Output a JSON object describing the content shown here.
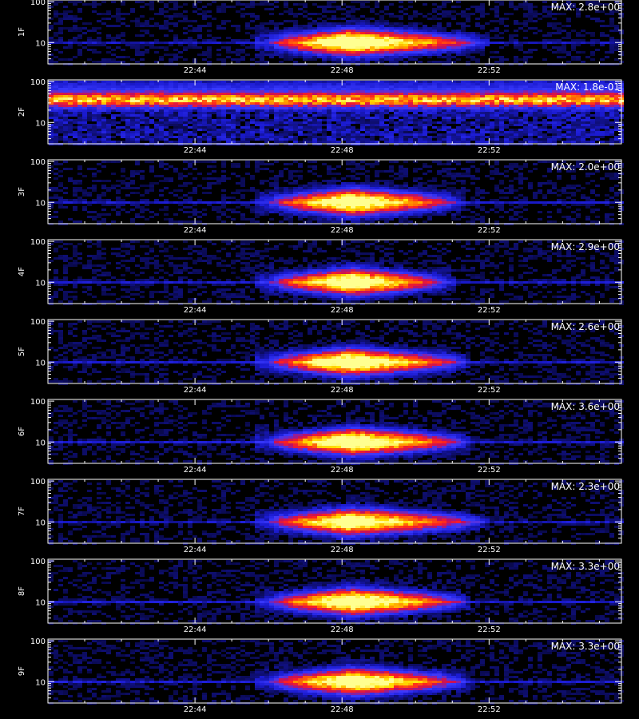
{
  "chart_data": {
    "type": "heatmap",
    "x_ticks": [
      "22:44",
      "22:48",
      "22:52"
    ],
    "y_ticks": [
      "100",
      "10"
    ],
    "colorscale": [
      "#000000",
      "#1a1ad0",
      "#3a3aff",
      "#c01060",
      "#ff2020",
      "#ff8000",
      "#ffe000",
      "#ffff90"
    ],
    "panels": [
      {
        "label": "1F",
        "max_label": "MAX: 2.8e+00",
        "band_y": 10,
        "band_intensity": 0.25,
        "event": {
          "t_start": "22:46.0",
          "t_peak": "22:48.2",
          "t_end": "22:51.5",
          "y": 10,
          "peak_intensity": 1.0
        }
      },
      {
        "label": "2F",
        "max_label": "MAX: 1.8e-01",
        "band_y": 35,
        "band_intensity": 0.85,
        "event": null
      },
      {
        "label": "3F",
        "max_label": "MAX: 2.0e+00",
        "band_y": 10,
        "band_intensity": 0.3,
        "event": {
          "t_start": "22:46.0",
          "t_peak": "22:48.3",
          "t_end": "22:50.8",
          "y": 10,
          "peak_intensity": 0.95
        }
      },
      {
        "label": "4F",
        "max_label": "MAX: 2.9e+00",
        "band_y": 10,
        "band_intensity": 0.3,
        "event": {
          "t_start": "22:46.0",
          "t_peak": "22:48.3",
          "t_end": "22:50.5",
          "y": 10,
          "peak_intensity": 0.95
        }
      },
      {
        "label": "5F",
        "max_label": "MAX: 2.6e+00",
        "band_y": 10,
        "band_intensity": 0.3,
        "event": {
          "t_start": "22:46.0",
          "t_peak": "22:48.2",
          "t_end": "22:51.0",
          "y": 10,
          "peak_intensity": 1.0
        }
      },
      {
        "label": "6F",
        "max_label": "MAX: 3.6e+00",
        "band_y": 10,
        "band_intensity": 0.3,
        "event": {
          "t_start": "22:46.0",
          "t_peak": "22:48.3",
          "t_end": "22:51.0",
          "y": 10,
          "peak_intensity": 1.0
        }
      },
      {
        "label": "7F",
        "max_label": "MAX: 2.3e+00",
        "band_y": 10,
        "band_intensity": 0.25,
        "event": {
          "t_start": "22:46.0",
          "t_peak": "22:48.2",
          "t_end": "22:51.5",
          "y": 10,
          "peak_intensity": 0.9
        }
      },
      {
        "label": "8F",
        "max_label": "MAX: 3.3e+00",
        "band_y": 10,
        "band_intensity": 0.3,
        "event": {
          "t_start": "22:46.0",
          "t_peak": "22:48.3",
          "t_end": "22:51.0",
          "y": 10,
          "peak_intensity": 1.0
        }
      },
      {
        "label": "9F",
        "max_label": "MAX: 3.3e+00",
        "band_y": 10,
        "band_intensity": 0.3,
        "event": {
          "t_start": "22:46.0",
          "t_peak": "22:48.3",
          "t_end": "22:51.0",
          "y": 10,
          "peak_intensity": 0.95
        }
      }
    ],
    "x_range": [
      "22:40",
      "22:55.6"
    ],
    "y_range": [
      3,
      110
    ],
    "y_scale": "log"
  }
}
